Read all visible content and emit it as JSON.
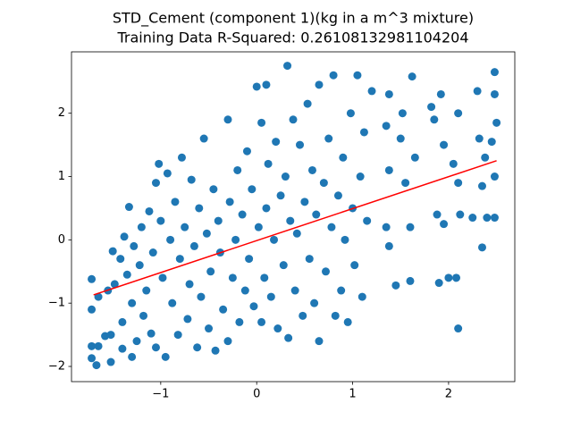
{
  "chart_data": {
    "type": "scatter",
    "title": "STD_Cement (component 1)(kg in a m^3 mixture)",
    "subtitle": "Training Data R-Squared: 0.26108132981104204",
    "color": "#1f77b4",
    "xlim": [
      -1.93,
      2.69
    ],
    "ylim": [
      -2.24,
      2.97
    ],
    "xticks": [
      {
        "value": -1,
        "label": "−1"
      },
      0,
      1,
      2
    ],
    "yticks": [
      {
        "value": -2,
        "label": "−2"
      },
      {
        "value": -1,
        "label": "−1"
      },
      0,
      1,
      2
    ],
    "x": [
      -1.72,
      -1.72,
      -1.72,
      -1.72,
      -1.65,
      -1.67,
      -1.65,
      -1.58,
      -1.55,
      -1.52,
      -1.52,
      -1.5,
      -1.48,
      -1.42,
      -1.4,
      -1.4,
      -1.38,
      -1.35,
      -1.33,
      -1.3,
      -1.3,
      -1.28,
      -1.25,
      -1.22,
      -1.2,
      -1.18,
      -1.15,
      -1.12,
      -1.1,
      -1.08,
      -1.05,
      -1.05,
      -1.02,
      -1.0,
      -0.98,
      -0.95,
      -0.93,
      -0.9,
      -0.88,
      -0.85,
      -0.82,
      -0.8,
      -0.78,
      -0.75,
      -0.72,
      -0.7,
      -0.68,
      -0.65,
      -0.62,
      -0.6,
      -0.58,
      -0.55,
      -0.52,
      -0.5,
      -0.48,
      -0.45,
      -0.43,
      -0.4,
      -0.38,
      -0.35,
      -0.3,
      -0.3,
      -0.28,
      -0.25,
      -0.22,
      -0.2,
      -0.18,
      -0.15,
      -0.12,
      -0.1,
      -0.08,
      -0.05,
      -0.03,
      0.0,
      0.02,
      0.05,
      0.05,
      0.08,
      0.1,
      0.1,
      0.12,
      0.15,
      0.18,
      0.2,
      0.22,
      0.25,
      0.28,
      0.3,
      0.32,
      0.33,
      0.35,
      0.38,
      0.4,
      0.42,
      0.45,
      0.48,
      0.5,
      0.53,
      0.55,
      0.58,
      0.6,
      0.62,
      0.65,
      0.65,
      0.7,
      0.72,
      0.75,
      0.78,
      0.8,
      0.82,
      0.85,
      0.88,
      0.9,
      0.92,
      0.95,
      0.98,
      1.0,
      1.02,
      1.05,
      1.08,
      1.1,
      1.12,
      1.15,
      1.2,
      1.35,
      1.35,
      1.38,
      1.38,
      1.38,
      1.45,
      1.5,
      1.52,
      1.55,
      1.6,
      1.6,
      1.62,
      1.65,
      1.82,
      1.85,
      1.88,
      1.9,
      1.92,
      1.95,
      1.95,
      2.0,
      2.05,
      2.08,
      2.1,
      2.1,
      2.1,
      2.12,
      2.25,
      2.3,
      2.32,
      2.35,
      2.35,
      2.38,
      2.4,
      2.45,
      2.48,
      2.48,
      2.48,
      2.48,
      2.5
    ],
    "y": [
      -0.62,
      -1.1,
      -1.68,
      -1.87,
      -1.68,
      -1.98,
      -0.9,
      -1.52,
      -0.8,
      -1.93,
      -1.5,
      -0.18,
      -0.7,
      -0.3,
      -1.3,
      -1.72,
      0.05,
      -0.55,
      0.52,
      -1.0,
      -1.85,
      -0.1,
      -1.6,
      -0.4,
      0.2,
      -1.2,
      -0.8,
      0.45,
      -1.48,
      -0.2,
      0.9,
      -1.7,
      1.2,
      0.3,
      -0.6,
      -1.85,
      1.05,
      0.0,
      -1.0,
      0.6,
      -1.5,
      -0.3,
      1.3,
      0.2,
      -1.25,
      -0.7,
      0.95,
      -0.1,
      -1.7,
      0.5,
      -0.9,
      1.6,
      0.1,
      -1.4,
      -0.5,
      0.8,
      -1.75,
      0.3,
      -0.2,
      -1.1,
      1.9,
      -1.6,
      0.6,
      -0.6,
      0.0,
      1.1,
      -1.3,
      0.4,
      -0.8,
      1.4,
      -0.3,
      0.8,
      -1.05,
      2.42,
      0.2,
      -1.3,
      1.85,
      -0.6,
      2.45,
      0.5,
      1.2,
      -0.9,
      0.0,
      1.55,
      -1.4,
      0.7,
      -0.4,
      1.0,
      2.75,
      -1.55,
      0.3,
      1.9,
      -0.8,
      0.1,
      1.5,
      -1.2,
      0.6,
      2.15,
      -0.3,
      1.1,
      -1.0,
      0.4,
      2.45,
      -1.6,
      0.9,
      -0.5,
      1.6,
      0.2,
      2.6,
      -1.2,
      0.7,
      -0.8,
      1.3,
      0.0,
      -1.3,
      2.0,
      0.5,
      -0.4,
      2.6,
      1.0,
      -0.9,
      1.7,
      0.3,
      2.35,
      1.8,
      0.2,
      1.1,
      2.3,
      -0.1,
      -0.72,
      1.6,
      2.0,
      0.9,
      -0.65,
      0.2,
      2.58,
      1.3,
      2.1,
      1.9,
      0.4,
      -0.68,
      2.3,
      1.5,
      0.25,
      -0.6,
      1.2,
      -0.6,
      0.9,
      -1.4,
      2.0,
      0.4,
      0.35,
      2.35,
      1.6,
      0.85,
      -0.12,
      1.3,
      0.35,
      1.55,
      2.65,
      2.3,
      1.0,
      0.35,
      1.85
    ],
    "fit_line": {
      "color": "#ff0000",
      "x": [
        -1.7,
        2.5
      ],
      "y": [
        -0.87,
        1.25
      ]
    }
  }
}
